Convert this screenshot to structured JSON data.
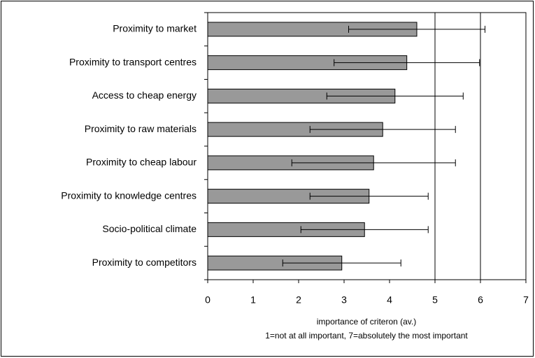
{
  "chart_data": {
    "type": "bar",
    "orientation": "horizontal",
    "categories": [
      "Proximity to market",
      "Proximity to transport centres",
      "Access to cheap energy",
      "Proximity to raw materials",
      "Proximity to cheap labour",
      "Proximity to knowledge centres",
      "Socio-political climate",
      "Proximity to competitors"
    ],
    "values": [
      4.6,
      4.38,
      4.12,
      3.85,
      3.65,
      3.55,
      3.45,
      2.95
    ],
    "errors": [
      1.5,
      1.6,
      1.5,
      1.6,
      1.8,
      1.3,
      1.4,
      1.3
    ],
    "color": "#999999",
    "xlim": [
      0,
      7
    ],
    "xticks": [
      0,
      1,
      2,
      3,
      4,
      5,
      6,
      7
    ],
    "xgrid": [
      5,
      6
    ],
    "xlabel": "importance of criteron (av.)",
    "xlabel2": "1=not at all important, 7=absolutely the most important"
  }
}
